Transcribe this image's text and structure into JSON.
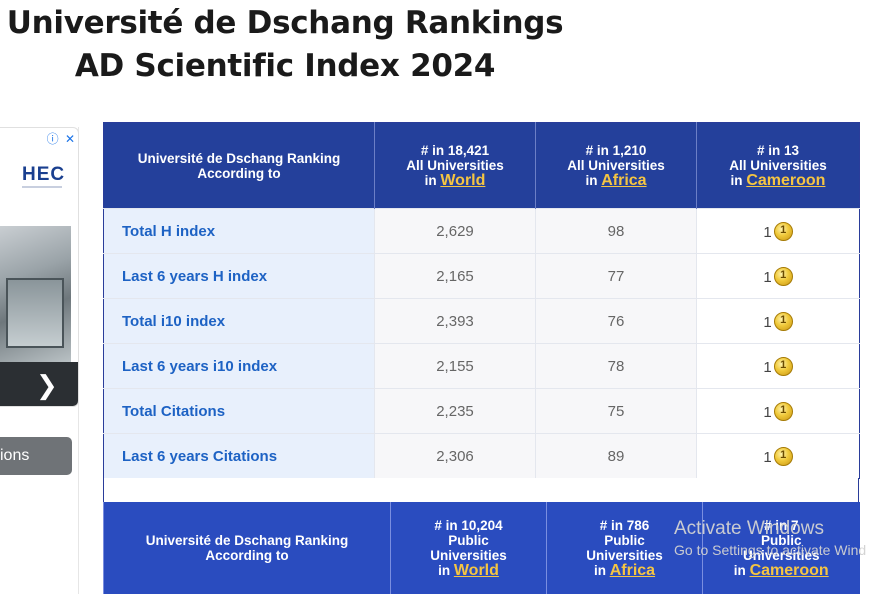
{
  "title": {
    "line1": "Université de Dschang Rankings",
    "line2": "AD Scientific Index 2024"
  },
  "ad": {
    "info_icon": "ⓘ",
    "close_icon": "✕",
    "brand": "HEC",
    "chevron": "❯",
    "button_text": "ions"
  },
  "table1": {
    "header": {
      "label_line1": "Université de Dschang Ranking",
      "label_line2": "According to",
      "cols": [
        {
          "count": "# in 18,421",
          "scope": "All Universities",
          "in": "in",
          "loc": "World"
        },
        {
          "count": "# in 1,210",
          "scope": "All Universities",
          "in": "in",
          "loc": "Africa"
        },
        {
          "count": "# in 13",
          "scope": "All Universities",
          "in": "in",
          "loc": "Cameroon"
        }
      ]
    },
    "rows": [
      {
        "metric": "Total H index",
        "world": "2,629",
        "africa": "98",
        "country": "1"
      },
      {
        "metric": "Last 6 years H index",
        "world": "2,165",
        "africa": "77",
        "country": "1"
      },
      {
        "metric": "Total i10 index",
        "world": "2,393",
        "africa": "76",
        "country": "1"
      },
      {
        "metric": "Last 6 years i10 index",
        "world": "2,155",
        "africa": "78",
        "country": "1"
      },
      {
        "metric": "Total Citations",
        "world": "2,235",
        "africa": "75",
        "country": "1"
      },
      {
        "metric": "Last 6 years Citations",
        "world": "2,306",
        "africa": "89",
        "country": "1"
      }
    ]
  },
  "table2": {
    "header": {
      "label_line1": "Université de Dschang Ranking",
      "label_line2": "According to",
      "cols": [
        {
          "count": "# in 10,204",
          "scope1": "Public",
          "scope2": "Universities",
          "in": "in",
          "loc": "World"
        },
        {
          "count": "# in 786",
          "scope1": "Public",
          "scope2": "Universities",
          "in": "in",
          "loc": "Africa"
        },
        {
          "count": "# in 7",
          "scope1": "Public",
          "scope2": "Universities",
          "in": "in",
          "loc": "Cameroon"
        }
      ]
    }
  },
  "watermark": {
    "line1": "Activate Windows",
    "line2": "Go to Settings to activate Wind"
  },
  "colors": {
    "header_blue": "#24409b",
    "link_gold": "#f5c542",
    "metric_blue": "#1d62c4"
  }
}
